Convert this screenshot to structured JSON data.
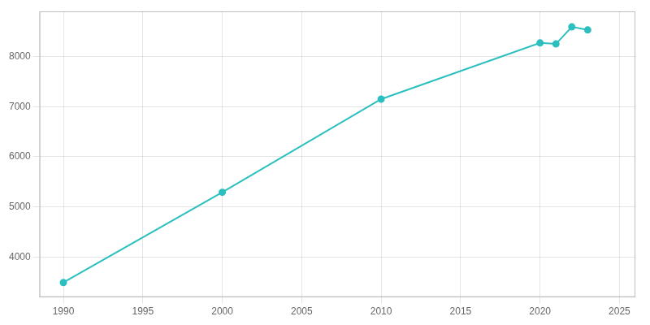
{
  "chart_data": {
    "type": "line",
    "x": [
      1990,
      2000,
      2010,
      2020,
      2021,
      2022,
      2023
    ],
    "values": [
      3490,
      5290,
      7150,
      8270,
      8250,
      8590,
      8530
    ],
    "color": "#2bbfbf",
    "marker": "circle",
    "xlim": [
      1988.5,
      2026
    ],
    "ylim": [
      3200,
      8900
    ],
    "xticks": [
      1990,
      1995,
      2000,
      2005,
      2010,
      2015,
      2020,
      2025
    ],
    "yticks": [
      4000,
      5000,
      6000,
      7000,
      8000
    ],
    "grid": true
  }
}
